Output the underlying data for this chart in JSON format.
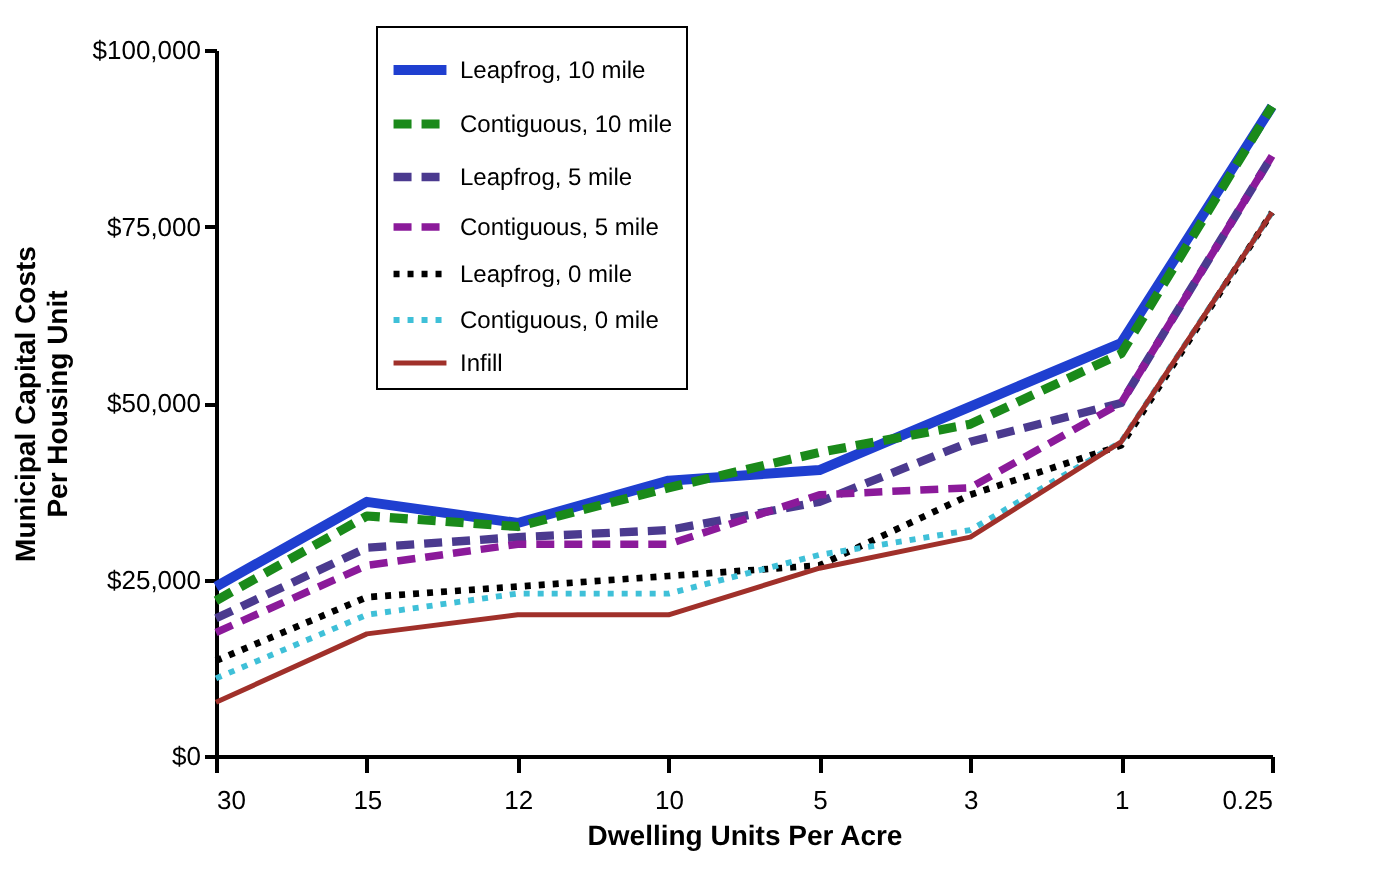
{
  "chart_data": {
    "type": "line",
    "xlabel": "Dwelling Units Per Acre",
    "ylabel": "Municipal Capital Costs Per Housing Unit",
    "categories": [
      "30",
      "15",
      "12",
      "10",
      "5",
      "3",
      "1",
      "0.25"
    ],
    "series": [
      {
        "name": "Leapfrog, 10 mile",
        "color": "#1f3fd0",
        "line_style": "solid",
        "values": [
          24000,
          36000,
          33000,
          39000,
          40500,
          49500,
          58500,
          92000
        ]
      },
      {
        "name": "Contiguous, 10 mile",
        "color": "#1a8a1a",
        "line_style": "dashed",
        "values": [
          22000,
          34000,
          32500,
          38000,
          43000,
          47000,
          57000,
          92000
        ]
      },
      {
        "name": "Leapfrog, 5 mile",
        "color": "#4b3a8f",
        "line_style": "dashed",
        "values": [
          19500,
          29500,
          31000,
          32000,
          36000,
          44500,
          50000,
          85000
        ]
      },
      {
        "name": "Contiguous, 5 mile",
        "color": "#8b1a9a",
        "line_style": "dashed",
        "values": [
          17500,
          27000,
          30000,
          30000,
          37000,
          38000,
          50000,
          85000
        ]
      },
      {
        "name": "Leapfrog, 0 mile",
        "color": "#000000",
        "line_style": "dotted",
        "values": [
          13500,
          22500,
          24000,
          25500,
          27000,
          37000,
          44000,
          77000
        ]
      },
      {
        "name": "Contiguous, 0 mile",
        "color": "#3fc0d8",
        "line_style": "dotted",
        "values": [
          11000,
          20000,
          23000,
          23000,
          28500,
          32000,
          44500,
          77000
        ]
      },
      {
        "name": "Infill",
        "color": "#a0302a",
        "line_style": "solid",
        "values": [
          7600,
          17300,
          20000,
          20000,
          26600,
          31000,
          44500,
          77000
        ]
      }
    ],
    "ylim": [
      0,
      100000
    ],
    "yticks": [
      {
        "value": 0,
        "label": "$0"
      },
      {
        "value": 25000,
        "label": "$25,000"
      },
      {
        "value": 50000,
        "label": "$50,000"
      },
      {
        "value": 75000,
        "label": "$75,000"
      },
      {
        "value": 100000,
        "label": "$100,000"
      }
    ],
    "grid": false,
    "legend": "top left",
    "marker": "none"
  }
}
